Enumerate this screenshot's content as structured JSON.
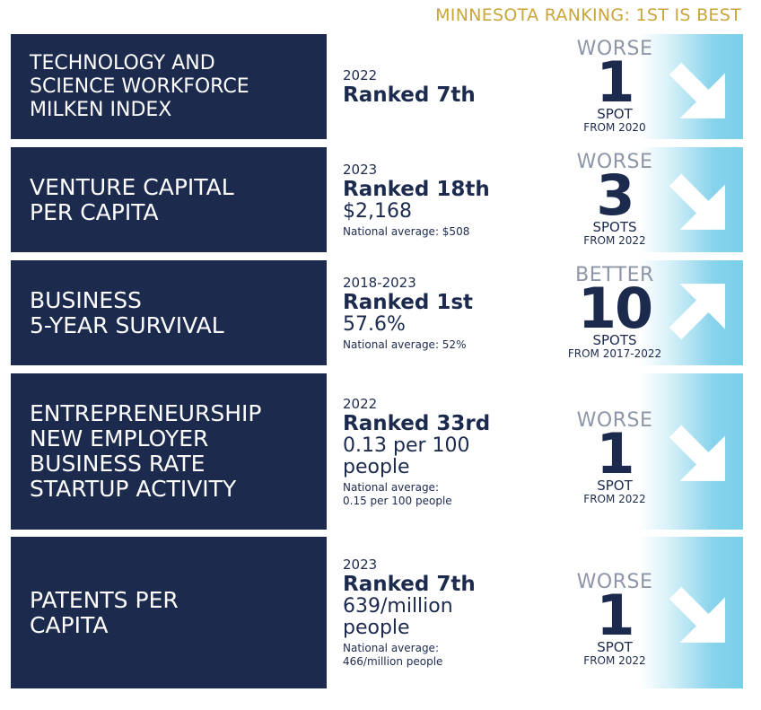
{
  "header": "MINNESOTA RANKING: 1ST IS BEST",
  "colors": {
    "navy": "#1c2a4e",
    "gold": "#c9a53a",
    "cyan": "#79cfe9",
    "gray": "#8d95a8"
  },
  "rows": [
    {
      "label": "TECHNOLOGY AND\nSCIENCE WORKFORCE\nMILKEN INDEX",
      "year": "2022",
      "rank": "Ranked 7th",
      "value": "",
      "national": "",
      "direction": "WORSE",
      "change": "1",
      "spot": "SPOT",
      "from": "FROM 2020",
      "arrow": "arrow-down-right-icon"
    },
    {
      "label": "VENTURE CAPITAL\nPER CAPITA",
      "year": "2023",
      "rank": "Ranked 18th",
      "value": "$2,168",
      "national": "National average: $508",
      "direction": "WORSE",
      "change": "3",
      "spot": "SPOTS",
      "from": "FROM 2022",
      "arrow": "arrow-down-right-icon"
    },
    {
      "label": "BUSINESS\n5-YEAR SURVIVAL",
      "year": "2018-2023",
      "rank": "Ranked 1st",
      "value": "57.6%",
      "national": "National average: 52%",
      "direction": "BETTER",
      "change": "10",
      "spot": "SPOTS",
      "from": "FROM 2017-2022",
      "arrow": "arrow-up-right-icon"
    },
    {
      "label": "ENTREPRENEURSHIP\nNEW EMPLOYER\nBUSINESS RATE\nSTARTUP ACTIVITY",
      "year": "2022",
      "rank": "Ranked 33rd",
      "value": "0.13 per 100\npeople",
      "national": "National average:\n0.15 per 100 people",
      "direction": "WORSE",
      "change": "1",
      "spot": "SPOT",
      "from": "FROM 2022",
      "arrow": "arrow-down-right-icon"
    },
    {
      "label": "PATENTS PER\nCAPITA",
      "year": "2023",
      "rank": "Ranked 7th",
      "value": "639/million\npeople",
      "national": "National average:\n466/million people",
      "direction": "WORSE",
      "change": "1",
      "spot": "SPOT",
      "from": "FROM 2022",
      "arrow": "arrow-down-right-icon"
    }
  ]
}
